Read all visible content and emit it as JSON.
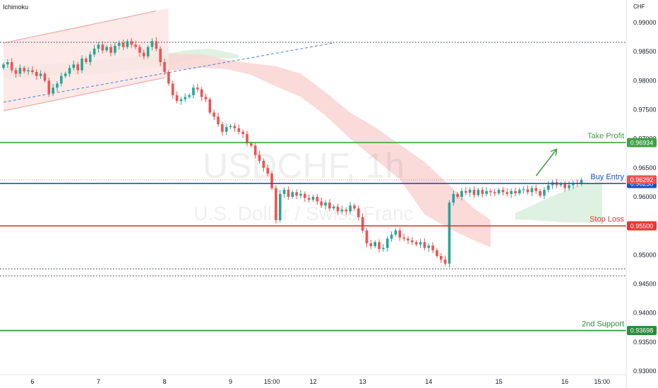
{
  "indicator_label": "Ichimoku",
  "currency_label": "CHF",
  "watermark": {
    "symbol": "USDCHF, 1h",
    "name": "U.S. Dollar / Swiss Franc"
  },
  "colors": {
    "up": "#26a69a",
    "down": "#ef5350",
    "take_profit": "#43a047",
    "buy_entry": "#1e4fc2",
    "stop_loss": "#e53935",
    "support": "#2e8b3a",
    "channel": "#f29a9a",
    "cloud_bear": "#f9d5d3",
    "cloud_bull": "#d9eedb",
    "trend_blue": "#4a7fd8",
    "dotted": "#1c2a4a"
  },
  "chart_data": {
    "type": "candlestick",
    "ylim": [
      0.93,
      0.992
    ],
    "x_range": [
      0,
      150
    ],
    "y_ticks": [
      0.99,
      0.985,
      0.98,
      0.975,
      0.97,
      0.965,
      0.96,
      0.955,
      0.95,
      0.945,
      0.94,
      0.935,
      0.93
    ],
    "y_tick_labels": [
      "0.99000",
      "0.98500",
      "0.98000",
      "0.97500",
      "0.97000",
      "0.96500",
      "0.96000",
      "0.95500",
      "0.95000",
      "0.94500",
      "0.94000",
      "0.93500",
      "0.93000"
    ],
    "x_ticks": [
      {
        "label": "6",
        "x": 7
      },
      {
        "label": "7",
        "x": 23
      },
      {
        "label": "8",
        "x": 39
      },
      {
        "label": "9",
        "x": 55
      },
      {
        "label": "15:00",
        "x": 65
      },
      {
        "label": "12",
        "x": 75
      },
      {
        "label": "13",
        "x": 87
      },
      {
        "label": "14",
        "x": 103
      },
      {
        "label": "15",
        "x": 120
      },
      {
        "label": "16",
        "x": 136
      },
      {
        "label": "15:00",
        "x": 145
      }
    ],
    "levels": [
      {
        "name": "Take Profit",
        "value": 0.96934,
        "badge": "0.96934",
        "color": "#43a047"
      },
      {
        "name": "Buy Entry",
        "value": 0.9623,
        "badge": "0.96230",
        "color": "#1e4fc2"
      },
      {
        "name": "Stop Loss",
        "value": 0.955,
        "badge": "0.95500",
        "color": "#e53935"
      },
      {
        "name": "2nd Support",
        "value": 0.93698,
        "badge": "0.93698",
        "color": "#2e8b3a"
      }
    ],
    "last_price": {
      "value": 0.96292,
      "badge": "0.96292"
    },
    "dotted_levels": [
      0.9866,
      0.9476,
      0.9464
    ],
    "channel": {
      "upper": [
        [
          0,
          0.9865
        ],
        [
          37,
          0.992
        ]
      ],
      "lower": [
        [
          0,
          0.9748
        ],
        [
          39,
          0.9805
        ]
      ],
      "end_x": 40
    },
    "trendline": [
      [
        0,
        0.9763
      ],
      [
        80,
        0.9865
      ]
    ],
    "arrow": {
      "from": [
        129,
        0.9636
      ],
      "to": [
        134,
        0.9682
      ]
    },
    "cloud_bear": [
      [
        40,
        0.9847,
        0.9817
      ],
      [
        48,
        0.9845,
        0.9822
      ],
      [
        54,
        0.9836,
        0.982
      ],
      [
        60,
        0.983,
        0.981
      ],
      [
        66,
        0.9825,
        0.979
      ],
      [
        72,
        0.9812,
        0.9772
      ],
      [
        78,
        0.978,
        0.974
      ],
      [
        84,
        0.9745,
        0.97
      ],
      [
        90,
        0.972,
        0.9665
      ],
      [
        96,
        0.969,
        0.963
      ],
      [
        102,
        0.966,
        0.957
      ],
      [
        108,
        0.962,
        0.9545
      ],
      [
        114,
        0.958,
        0.9525
      ],
      [
        118,
        0.956,
        0.9513
      ]
    ],
    "cloud_bull_early": [
      [
        0,
        0.9825,
        0.9803
      ],
      [
        8,
        0.9828,
        0.9808
      ],
      [
        16,
        0.983,
        0.981
      ],
      [
        24,
        0.9836,
        0.9812
      ],
      [
        30,
        0.984,
        0.9818
      ],
      [
        36,
        0.9846,
        0.9822
      ],
      [
        40,
        0.9847,
        0.9825
      ],
      [
        44,
        0.9852,
        0.9835
      ],
      [
        50,
        0.9855,
        0.984
      ],
      [
        55,
        0.9848,
        0.9838
      ],
      [
        57,
        0.9844,
        0.984
      ]
    ],
    "cloud_bull_late": [
      [
        124,
        0.9572,
        0.9561
      ],
      [
        128,
        0.9585,
        0.956
      ],
      [
        132,
        0.9598,
        0.9558
      ],
      [
        136,
        0.961,
        0.9556
      ],
      [
        140,
        0.9622,
        0.9556
      ],
      [
        145,
        0.9625,
        0.9556
      ]
    ],
    "closes": [
      0.9828,
      0.9832,
      0.9818,
      0.9812,
      0.9822,
      0.9816,
      0.9818,
      0.9815,
      0.9808,
      0.9812,
      0.98,
      0.9778,
      0.9788,
      0.9795,
      0.9808,
      0.9812,
      0.9822,
      0.9828,
      0.9818,
      0.9838,
      0.9832,
      0.9845,
      0.9855,
      0.9862,
      0.9852,
      0.9858,
      0.9848,
      0.986,
      0.9865,
      0.9858,
      0.9868,
      0.9862,
      0.9858,
      0.9848,
      0.9842,
      0.9858,
      0.9868,
      0.9855,
      0.9832,
      0.9815,
      0.9795,
      0.9775,
      0.9765,
      0.9768,
      0.9772,
      0.9775,
      0.9788,
      0.9785,
      0.9772,
      0.9768,
      0.9745,
      0.9738,
      0.9725,
      0.9712,
      0.972,
      0.9722,
      0.9718,
      0.9712,
      0.9708,
      0.9692,
      0.9688,
      0.9672,
      0.9662,
      0.965,
      0.964,
      0.9615,
      0.956,
      0.9605,
      0.9612,
      0.96,
      0.9608,
      0.9602,
      0.9605,
      0.9598,
      0.9595,
      0.96,
      0.9592,
      0.9585,
      0.959,
      0.958,
      0.9583,
      0.9575,
      0.9578,
      0.9575,
      0.9585,
      0.958,
      0.9565,
      0.9542,
      0.952,
      0.9515,
      0.9522,
      0.951,
      0.9512,
      0.9528,
      0.9535,
      0.9542,
      0.953,
      0.9528,
      0.9525,
      0.9522,
      0.9518,
      0.9522,
      0.9512,
      0.9516,
      0.9508,
      0.9498,
      0.9492,
      0.9485,
      0.959,
      0.9605,
      0.96,
      0.961,
      0.9607,
      0.9612,
      0.9603,
      0.9612,
      0.9605,
      0.961,
      0.9608,
      0.9606,
      0.9612,
      0.9608,
      0.9605,
      0.961,
      0.9606,
      0.9612,
      0.9613,
      0.9608,
      0.9615,
      0.961,
      0.9602,
      0.9612,
      0.962,
      0.9625,
      0.962,
      0.9622,
      0.9615,
      0.962,
      0.9624,
      0.9622,
      0.9629
    ],
    "open_start": 0.9822
  }
}
